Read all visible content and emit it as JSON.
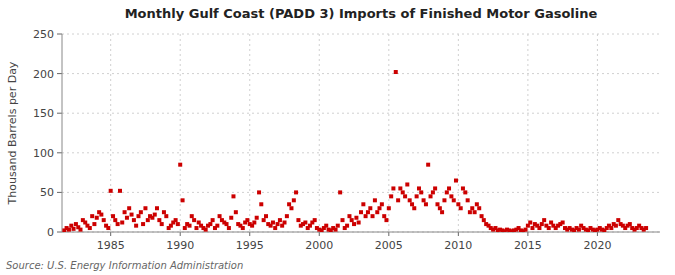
{
  "chart_data": {
    "type": "scatter",
    "title": "Monthly Gulf Coast (PADD 3) Imports of Finished Motor Gasoline",
    "ylabel": "Thousand Barrels per Day",
    "annotations": [
      "Source: U.S. Energy Information Administration"
    ],
    "color": "#cc0000",
    "marker": "square",
    "grid": true,
    "xlim": [
      1981.5,
      2024.5
    ],
    "xticks": [
      1985,
      1990,
      1995,
      2000,
      2005,
      2010,
      2015,
      2020
    ],
    "ylim": [
      0,
      250
    ],
    "yticks": [
      0,
      50,
      100,
      150,
      200,
      250
    ],
    "x": [
      1981.67,
      1981.83,
      1982.0,
      1982.17,
      1982.33,
      1982.5,
      1982.67,
      1982.83,
      1983.0,
      1983.17,
      1983.33,
      1983.5,
      1983.67,
      1983.83,
      1984.0,
      1984.17,
      1984.33,
      1984.5,
      1984.67,
      1984.83,
      1985.0,
      1985.17,
      1985.33,
      1985.5,
      1985.67,
      1985.83,
      1986.0,
      1986.17,
      1986.33,
      1986.5,
      1986.67,
      1986.83,
      1987.0,
      1987.17,
      1987.33,
      1987.5,
      1987.67,
      1987.83,
      1988.0,
      1988.17,
      1988.33,
      1988.5,
      1988.67,
      1988.83,
      1989.0,
      1989.17,
      1989.33,
      1989.5,
      1989.67,
      1989.83,
      1990.0,
      1990.17,
      1990.33,
      1990.5,
      1990.67,
      1990.83,
      1991.0,
      1991.17,
      1991.33,
      1991.5,
      1991.67,
      1991.83,
      1992.0,
      1992.17,
      1992.33,
      1992.5,
      1992.67,
      1992.83,
      1993.0,
      1993.17,
      1993.33,
      1993.5,
      1993.67,
      1993.83,
      1994.0,
      1994.17,
      1994.33,
      1994.5,
      1994.67,
      1994.83,
      1995.0,
      1995.17,
      1995.33,
      1995.5,
      1995.67,
      1995.83,
      1996.0,
      1996.17,
      1996.33,
      1996.5,
      1996.67,
      1996.83,
      1997.0,
      1997.17,
      1997.33,
      1997.5,
      1997.67,
      1997.83,
      1998.0,
      1998.17,
      1998.33,
      1998.5,
      1998.67,
      1998.83,
      1999.0,
      1999.17,
      1999.33,
      1999.5,
      1999.67,
      1999.83,
      2000.0,
      2000.17,
      2000.33,
      2000.5,
      2000.67,
      2000.83,
      2001.0,
      2001.17,
      2001.33,
      2001.5,
      2001.67,
      2001.83,
      2002.0,
      2002.17,
      2002.33,
      2002.5,
      2002.67,
      2002.83,
      2003.0,
      2003.17,
      2003.33,
      2003.5,
      2003.67,
      2003.83,
      2004.0,
      2004.17,
      2004.33,
      2004.5,
      2004.67,
      2004.83,
      2005.0,
      2005.17,
      2005.33,
      2005.5,
      2005.67,
      2005.83,
      2006.0,
      2006.17,
      2006.33,
      2006.5,
      2006.67,
      2006.83,
      2007.0,
      2007.17,
      2007.33,
      2007.5,
      2007.67,
      2007.83,
      2008.0,
      2008.17,
      2008.33,
      2008.5,
      2008.67,
      2008.83,
      2009.0,
      2009.17,
      2009.33,
      2009.5,
      2009.67,
      2009.83,
      2010.0,
      2010.17,
      2010.33,
      2010.5,
      2010.67,
      2010.83,
      2011.0,
      2011.17,
      2011.33,
      2011.5,
      2011.67,
      2011.83,
      2012.0,
      2012.17,
      2012.33,
      2012.5,
      2012.67,
      2012.83,
      2013.0,
      2013.17,
      2013.33,
      2013.5,
      2013.67,
      2013.83,
      2014.0,
      2014.17,
      2014.33,
      2014.5,
      2014.67,
      2014.83,
      2015.0,
      2015.17,
      2015.33,
      2015.5,
      2015.67,
      2015.83,
      2016.0,
      2016.17,
      2016.33,
      2016.5,
      2016.67,
      2016.83,
      2017.0,
      2017.17,
      2017.33,
      2017.5,
      2017.67,
      2017.83,
      2018.0,
      2018.17,
      2018.33,
      2018.5,
      2018.67,
      2018.83,
      2019.0,
      2019.17,
      2019.33,
      2019.5,
      2019.67,
      2019.83,
      2020.0,
      2020.17,
      2020.33,
      2020.5,
      2020.67,
      2020.83,
      2021.0,
      2021.17,
      2021.33,
      2021.5,
      2021.67,
      2021.83,
      2022.0,
      2022.17,
      2022.33,
      2022.5,
      2022.67,
      2022.83,
      2023.0,
      2023.17,
      2023.33,
      2023.5
    ],
    "values": [
      2,
      5,
      3,
      8,
      4,
      10,
      6,
      3,
      15,
      12,
      8,
      5,
      20,
      10,
      18,
      25,
      22,
      15,
      8,
      5,
      52,
      20,
      15,
      10,
      52,
      12,
      25,
      18,
      30,
      22,
      15,
      8,
      20,
      25,
      10,
      30,
      15,
      20,
      18,
      22,
      30,
      15,
      10,
      25,
      20,
      5,
      8,
      12,
      15,
      10,
      85,
      40,
      5,
      10,
      8,
      20,
      15,
      5,
      12,
      8,
      5,
      3,
      8,
      10,
      15,
      5,
      8,
      20,
      15,
      12,
      10,
      5,
      18,
      45,
      25,
      10,
      8,
      5,
      12,
      15,
      10,
      8,
      12,
      18,
      50,
      35,
      15,
      20,
      10,
      8,
      12,
      5,
      10,
      15,
      8,
      12,
      20,
      35,
      30,
      40,
      50,
      15,
      8,
      10,
      12,
      5,
      8,
      12,
      15,
      5,
      3,
      2,
      5,
      8,
      3,
      2,
      5,
      3,
      8,
      50,
      15,
      5,
      8,
      20,
      15,
      10,
      18,
      12,
      25,
      35,
      20,
      25,
      30,
      20,
      40,
      25,
      30,
      35,
      20,
      15,
      30,
      45,
      55,
      202,
      40,
      55,
      50,
      45,
      60,
      40,
      35,
      30,
      45,
      55,
      50,
      40,
      35,
      85,
      45,
      50,
      55,
      35,
      30,
      25,
      40,
      50,
      55,
      45,
      40,
      65,
      35,
      30,
      55,
      50,
      40,
      25,
      30,
      25,
      35,
      30,
      20,
      15,
      10,
      8,
      5,
      3,
      5,
      2,
      3,
      2,
      1,
      3,
      2,
      1,
      2,
      3,
      5,
      2,
      1,
      3,
      8,
      12,
      5,
      10,
      8,
      5,
      10,
      15,
      8,
      5,
      12,
      8,
      5,
      8,
      10,
      12,
      5,
      3,
      5,
      3,
      2,
      5,
      3,
      8,
      5,
      3,
      2,
      5,
      3,
      2,
      3,
      5,
      3,
      2,
      5,
      8,
      5,
      10,
      8,
      15,
      10,
      8,
      5,
      8,
      10,
      5,
      3,
      5,
      8,
      5,
      3,
      5
    ]
  }
}
